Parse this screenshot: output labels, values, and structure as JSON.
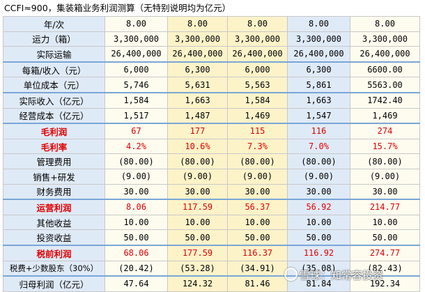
{
  "title": "CCFI≈900，集装箱业务利润测算（无特别说明均为亿元）",
  "rows": [
    {
      "label": "年/次",
      "values": [
        "8.00",
        "8.00",
        "8.00",
        "8.00",
        "8.00"
      ],
      "red": false,
      "group": false
    },
    {
      "label": "运力（箱）",
      "values": [
        "3,300,000",
        "3,300,000",
        "3,300,000",
        "3,300,000",
        "3,300,000"
      ],
      "red": false,
      "group": false
    },
    {
      "label": "实际运输",
      "values": [
        "26,400,000",
        "26,400,000",
        "26,400,000",
        "26,400,000",
        "26,400,000"
      ],
      "red": false,
      "group": false
    },
    {
      "label": "每箱/收入（元）",
      "values": [
        "6,000",
        "6,300",
        "6,000",
        "6,300",
        "6600.00"
      ],
      "red": false,
      "group": true
    },
    {
      "label": "单位成本（元）",
      "values": [
        "5,746",
        "5,631",
        "5,563",
        "5,861",
        "5563.00"
      ],
      "red": false,
      "group": false
    },
    {
      "label": "实际收入（亿元）",
      "values": [
        "1,584",
        "1,663",
        "1,584",
        "1,663",
        "1742.40"
      ],
      "red": false,
      "group": true
    },
    {
      "label": "经营成本（亿元）",
      "values": [
        "1,517",
        "1,487",
        "1,469",
        "1,547",
        "1,469"
      ],
      "red": false,
      "group": false
    },
    {
      "label": "毛利润",
      "values": [
        "67",
        "177",
        "115",
        "116",
        "274"
      ],
      "red": true,
      "group": true
    },
    {
      "label": "毛利率",
      "values": [
        "4.2%",
        "10.6%",
        "7.3%",
        "7.0%",
        "15.7%"
      ],
      "red": true,
      "group": false
    },
    {
      "label": "管理费用",
      "values": [
        "(80.00)",
        "(80.00)",
        "(80.00)",
        "(80.00)",
        "(80.00)"
      ],
      "red": false,
      "group": false
    },
    {
      "label": "销售+研发",
      "values": [
        "(9.00)",
        "(9.00)",
        "(9.00)",
        "(9.00)",
        "(9.00)"
      ],
      "red": false,
      "group": false
    },
    {
      "label": "财务费用",
      "values": [
        "30.00",
        "30.00",
        "30.00",
        "30.00",
        "30.00"
      ],
      "red": false,
      "group": false
    },
    {
      "label": "运营利润",
      "values": [
        "8.06",
        "117.59",
        "56.37",
        "56.92",
        "214.77"
      ],
      "red": true,
      "group": true
    },
    {
      "label": "其他收益",
      "values": [
        "10.00",
        "10.00",
        "10.00",
        "10.00",
        "10.00"
      ],
      "red": false,
      "group": false
    },
    {
      "label": "投资收益",
      "values": [
        "50.00",
        "50.00",
        "50.00",
        "50.00",
        "50.00"
      ],
      "red": false,
      "group": false
    },
    {
      "label": "税前利润",
      "values": [
        "68.06",
        "177.59",
        "116.37",
        "116.92",
        "274.77"
      ],
      "red": true,
      "group": true
    },
    {
      "label": "税费+少数股东（30%）",
      "values": [
        "(20.42)",
        "(53.28)",
        "(34.91)",
        "(35.08)",
        "(82.43)"
      ],
      "red": false,
      "group": false
    },
    {
      "label": "归母利润（亿元）",
      "values": [
        "47.64",
        "124.32",
        "81.46",
        "81.84",
        "192.34"
      ],
      "red": false,
      "group": true
    }
  ],
  "watermark": "雪球：知常容投资"
}
